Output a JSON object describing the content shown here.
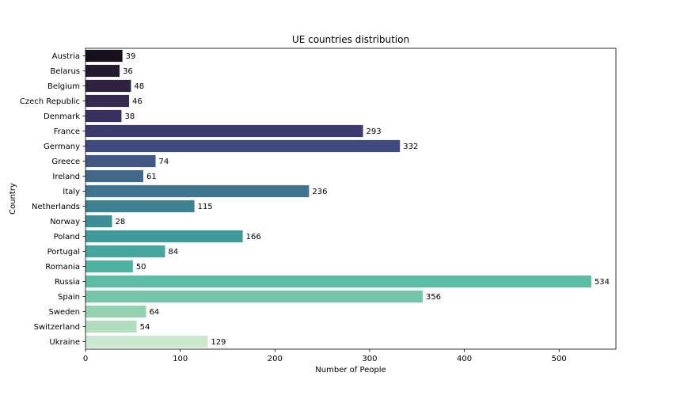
{
  "chart_data": {
    "type": "bar",
    "orientation": "horizontal",
    "title": "UE countries distribution",
    "xlabel": "Number of People",
    "ylabel": "Country",
    "xlim": [
      0,
      560
    ],
    "xticks": [
      0,
      100,
      200,
      300,
      400,
      500
    ],
    "grid": false,
    "categories": [
      "Austria",
      "Belarus",
      "Belgium",
      "Czech Republic",
      "Denmark",
      "France",
      "Germany",
      "Greece",
      "Ireland",
      "Italy",
      "Netherlands",
      "Norway",
      "Poland",
      "Portugal",
      "Romania",
      "Russia",
      "Spain",
      "Sweden",
      "Switzerland",
      "Ukraine"
    ],
    "values": [
      39,
      36,
      48,
      46,
      38,
      293,
      332,
      74,
      61,
      236,
      115,
      28,
      166,
      84,
      50,
      534,
      356,
      64,
      54,
      129
    ],
    "colors": [
      "#170f1e",
      "#231a30",
      "#2e2240",
      "#352a50",
      "#3a3160",
      "#3b3b6f",
      "#414a7e",
      "#435785",
      "#416789",
      "#40738d",
      "#3d8191",
      "#3b8e95",
      "#3f9a99",
      "#46a69c",
      "#4fb1a0",
      "#5cbda4",
      "#73c6a9",
      "#94d1b0",
      "#b1dcbd",
      "#c9e8d0"
    ]
  }
}
